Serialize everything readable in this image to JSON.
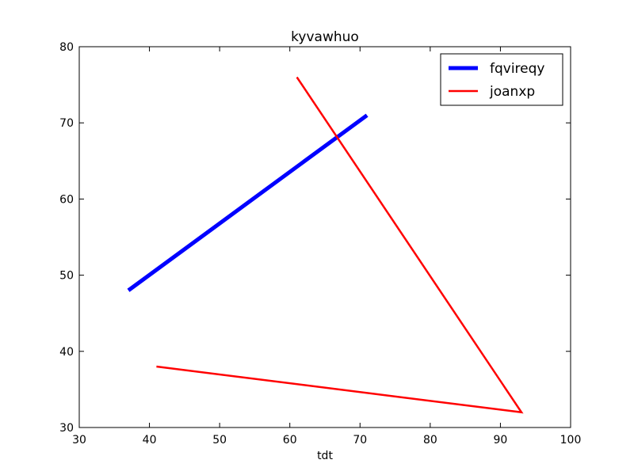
{
  "chart_data": {
    "type": "line",
    "title": "kyvawhuo",
    "xlabel": "tdt",
    "ylabel": "",
    "xlim": [
      30,
      100
    ],
    "ylim": [
      30,
      80
    ],
    "xticks": [
      30,
      40,
      50,
      60,
      70,
      80,
      90,
      100
    ],
    "yticks": [
      30,
      40,
      50,
      60,
      70,
      80
    ],
    "grid": false,
    "legend_position": "top-right",
    "series": [
      {
        "name": "fqvireqy",
        "color": "#0000ff",
        "x": [
          37,
          71
        ],
        "y": [
          48,
          71
        ]
      },
      {
        "name": "joanxp",
        "color": "#ff0000",
        "x": [
          61,
          93,
          41
        ],
        "y": [
          76,
          32,
          38
        ]
      }
    ]
  }
}
